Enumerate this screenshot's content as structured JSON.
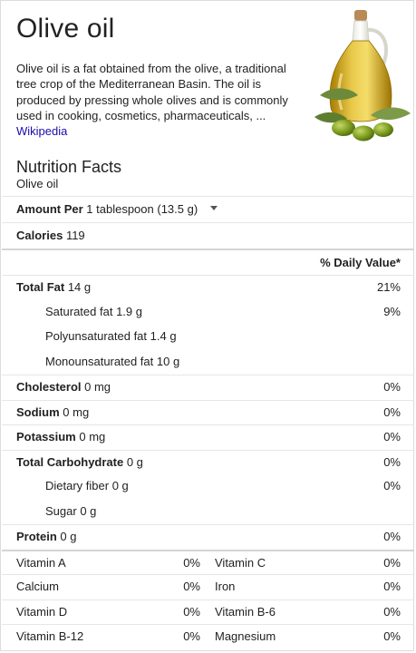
{
  "header": {
    "title": "Olive oil",
    "description": "Olive oil is a fat obtained from the olive, a traditional tree crop of the Mediterranean Basin. The oil is produced by pressing whole olives and is commonly used in cooking, cosmetics, pharmaceuticals, ...",
    "source": "Wikipedia",
    "image_icon": "olive-oil-bottle-image"
  },
  "nutrition": {
    "heading": "Nutrition Facts",
    "food": "Olive oil",
    "amount_label": "Amount Per",
    "serving": "1 tablespoon (13.5 g)",
    "calories_label": "Calories",
    "calories_value": "119",
    "dv_header": "% Daily Value*",
    "nutrients": [
      {
        "label": "Total Fat",
        "amount": "14 g",
        "pct": "21%",
        "bold": true,
        "sub": false
      },
      {
        "label": "Saturated fat",
        "amount": "1.9 g",
        "pct": "9%",
        "bold": false,
        "sub": true
      },
      {
        "label": "Polyunsaturated fat",
        "amount": "1.4 g",
        "pct": "",
        "bold": false,
        "sub": true
      },
      {
        "label": "Monounsaturated fat",
        "amount": "10 g",
        "pct": "",
        "bold": false,
        "sub": true
      },
      {
        "label": "Cholesterol",
        "amount": "0 mg",
        "pct": "0%",
        "bold": true,
        "sub": false
      },
      {
        "label": "Sodium",
        "amount": "0 mg",
        "pct": "0%",
        "bold": true,
        "sub": false
      },
      {
        "label": "Potassium",
        "amount": "0 mg",
        "pct": "0%",
        "bold": true,
        "sub": false
      },
      {
        "label": "Total Carbohydrate",
        "amount": "0 g",
        "pct": "0%",
        "bold": true,
        "sub": false
      },
      {
        "label": "Dietary fiber",
        "amount": "0 g",
        "pct": "0%",
        "bold": false,
        "sub": true
      },
      {
        "label": "Sugar",
        "amount": "0 g",
        "pct": "",
        "bold": false,
        "sub": true
      },
      {
        "label": "Protein",
        "amount": "0 g",
        "pct": "0%",
        "bold": true,
        "sub": false
      }
    ],
    "vitamins": [
      {
        "n1": "Vitamin A",
        "p1": "0%",
        "n2": "Vitamin C",
        "p2": "0%"
      },
      {
        "n1": "Calcium",
        "p1": "0%",
        "n2": "Iron",
        "p2": "0%"
      },
      {
        "n1": "Vitamin D",
        "p1": "0%",
        "n2": "Vitamin B-6",
        "p2": "0%"
      },
      {
        "n1": "Vitamin B-12",
        "p1": "0%",
        "n2": "Magnesium",
        "p2": "0%"
      }
    ]
  },
  "colors": {
    "link": "#1a0dab",
    "text": "#222222",
    "divider": "#e6e6e6",
    "oil": "#c9a21a"
  }
}
